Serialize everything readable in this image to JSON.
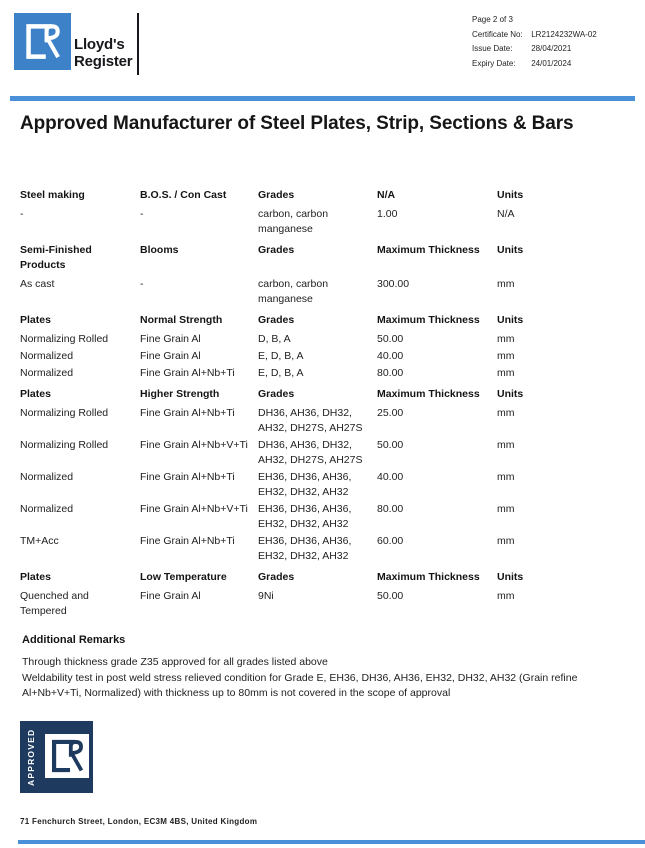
{
  "colors": {
    "logo_blue": "#3d81c8",
    "rule_blue": "#4a90d9",
    "stamp_navy": "#1e3a5f",
    "text": "#222222"
  },
  "header": {
    "brand_line1": "Lloyd's",
    "brand_line2": "Register",
    "meta": [
      {
        "label": "Page 2 of 3",
        "value": ""
      },
      {
        "label": "Certificate No:",
        "value": "LR2124232WA-02"
      },
      {
        "label": "Issue Date:",
        "value": "28/04/2021"
      },
      {
        "label": "Expiry Date:",
        "value": "24/01/2024"
      }
    ]
  },
  "title": "Approved Manufacturer of Steel Plates, Strip, Sections & Bars",
  "sections": [
    {
      "headers": [
        "Steel making",
        "B.O.S. / Con Cast",
        "Grades",
        "N/A",
        "Units"
      ],
      "rows": [
        [
          "-",
          "-",
          "carbon, carbon manganese",
          "1.00",
          "N/A"
        ]
      ]
    },
    {
      "headers": [
        "Semi-Finished Products",
        "Blooms",
        "Grades",
        "Maximum Thickness",
        "Units"
      ],
      "rows": [
        [
          "As cast",
          "-",
          "carbon, carbon manganese",
          "300.00",
          "mm"
        ]
      ]
    },
    {
      "headers": [
        "Plates",
        "Normal Strength",
        "Grades",
        "Maximum Thickness",
        "Units"
      ],
      "rows": [
        [
          "Normalizing Rolled",
          "Fine Grain Al",
          "D, B, A",
          "50.00",
          "mm"
        ],
        [
          "Normalized",
          "Fine Grain Al",
          "E, D, B, A",
          "40.00",
          "mm"
        ],
        [
          "Normalized",
          "Fine Grain Al+Nb+Ti",
          "E, D, B, A",
          "80.00",
          "mm"
        ]
      ]
    },
    {
      "headers": [
        "Plates",
        "Higher Strength",
        "Grades",
        "Maximum Thickness",
        "Units"
      ],
      "rows": [
        [
          "Normalizing Rolled",
          "Fine Grain Al+Nb+Ti",
          "DH36, AH36, DH32, AH32, DH27S, AH27S",
          "25.00",
          "mm"
        ],
        [
          "Normalizing Rolled",
          "Fine Grain Al+Nb+V+Ti",
          "DH36, AH36, DH32, AH32, DH27S, AH27S",
          "50.00",
          "mm"
        ],
        [
          "Normalized",
          "Fine Grain Al+Nb+Ti",
          "EH36, DH36, AH36, EH32, DH32, AH32",
          "40.00",
          "mm"
        ],
        [
          "Normalized",
          "Fine Grain Al+Nb+V+Ti",
          "EH36, DH36, AH36, EH32, DH32, AH32",
          "80.00",
          "mm"
        ],
        [
          "TM+Acc",
          "Fine Grain Al+Nb+Ti",
          "EH36, DH36, AH36, EH32, DH32, AH32",
          "60.00",
          "mm"
        ]
      ]
    },
    {
      "headers": [
        "Plates",
        "Low Temperature",
        "Grades",
        "Maximum Thickness",
        "Units"
      ],
      "rows": [
        [
          "Quenched and Tempered",
          "Fine Grain Al",
          "9Ni",
          "50.00",
          "mm"
        ]
      ]
    }
  ],
  "remarks": {
    "heading": "Additional Remarks",
    "lines": [
      "Through thickness grade Z35 approved for all grades listed above",
      "Weldability test in post weld stress relieved condition for Grade E, EH36, DH36, AH36, EH32, DH32, AH32 (Grain refine Al+Nb+V+Ti, Normalized) with thickness up to 80mm is not covered in the scope of approval"
    ]
  },
  "stamp": {
    "label": "APPROVED"
  },
  "footer": {
    "address": "71 Fenchurch Street, London, EC3M 4BS, United Kingdom"
  }
}
